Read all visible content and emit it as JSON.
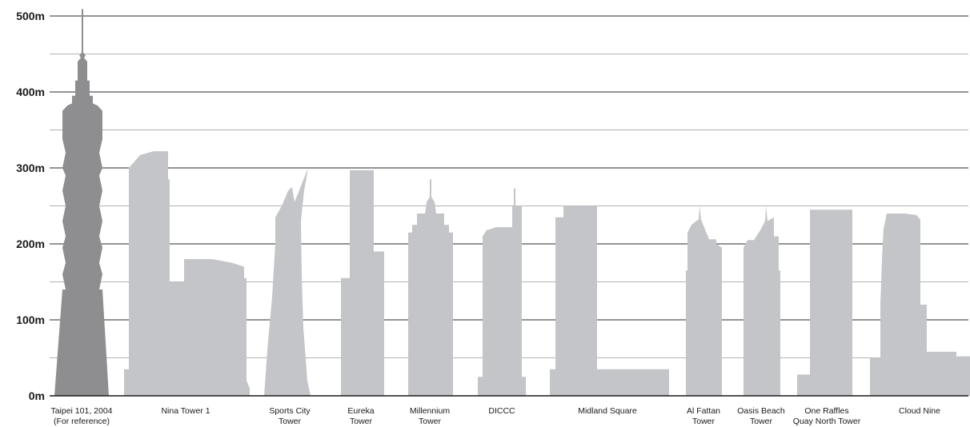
{
  "chart_data": {
    "type": "bar",
    "ylabel": "",
    "xlabel": "",
    "ylim": [
      0,
      500
    ],
    "y_ticks": [
      {
        "value": 0,
        "label": "0m"
      },
      {
        "value": 100,
        "label": "100m"
      },
      {
        "value": 200,
        "label": "200m"
      },
      {
        "value": 300,
        "label": "300m"
      },
      {
        "value": 400,
        "label": "400m"
      },
      {
        "value": 500,
        "label": "500m"
      }
    ],
    "grid": true,
    "minor_grid_step": 50,
    "categories": [
      {
        "lines": [
          "Taipei 101, 2004",
          "(For reference)"
        ],
        "value": 509,
        "color": "#8e8e90"
      },
      {
        "lines": [
          "Nina Tower 1"
        ],
        "value": 322,
        "color": "#c4c5c8"
      },
      {
        "lines": [
          "Sports City",
          "Tower"
        ],
        "value": 300,
        "color": "#c4c5c8"
      },
      {
        "lines": [
          "Eureka",
          "Tower"
        ],
        "value": 297,
        "color": "#c4c5c8"
      },
      {
        "lines": [
          "Millennium",
          "Tower"
        ],
        "value": 285,
        "color": "#c4c5c8"
      },
      {
        "lines": [
          "DICCC"
        ],
        "value": 273,
        "color": "#c4c5c8"
      },
      {
        "lines": [
          "Midland Square"
        ],
        "value": 250,
        "color": "#c4c5c8"
      },
      {
        "lines": [
          "Al Fattan",
          "Tower"
        ],
        "value": 250,
        "color": "#c4c5c8"
      },
      {
        "lines": [
          "Oasis Beach",
          "Tower"
        ],
        "value": 250,
        "color": "#c4c5c8"
      },
      {
        "lines": [
          "One Raffles",
          "Quay North Tower"
        ],
        "value": 245,
        "color": "#c4c5c8"
      },
      {
        "lines": [
          "Cloud Nine"
        ],
        "value": 240,
        "color": "#c4c5c8"
      }
    ]
  }
}
